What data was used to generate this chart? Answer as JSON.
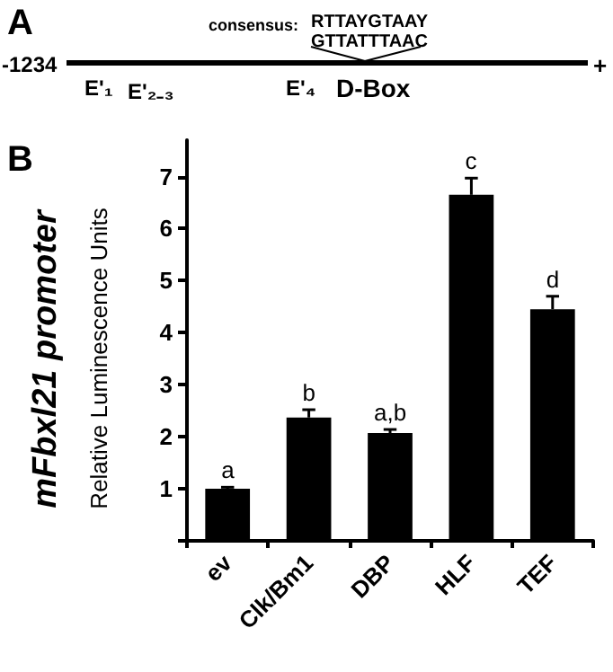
{
  "chart_data": {
    "type": "bar",
    "title": "mFbxl21 promoter",
    "ylabel": "Relative Luminescence Units",
    "categories": [
      "ev",
      "Clk/Bm1",
      "DBP",
      "HLF",
      "TEF"
    ],
    "values": [
      1.0,
      2.37,
      2.07,
      6.65,
      4.45
    ],
    "errors": [
      [
        1.0,
        1.03
      ],
      [
        2.37,
        2.52
      ],
      [
        2.07,
        2.14
      ],
      [
        6.65,
        6.97
      ],
      [
        4.45,
        4.7
      ]
    ],
    "color": "#000000",
    "ylim": [
      0,
      7.7
    ],
    "yticks": [
      {
        "value": 0,
        "label": null
      },
      1,
      2,
      3,
      4,
      5,
      6,
      7
    ],
    "grid": false,
    "annotations": [
      {
        "text": "a",
        "x": "ev",
        "y": 1.03
      },
      {
        "text": "b",
        "x": "Clk/Bm1",
        "y": 2.52
      },
      {
        "text": "a,b",
        "x": "DBP",
        "y": 2.14
      },
      {
        "text": "c",
        "x": "HLF",
        "y": 6.97
      },
      {
        "text": "d",
        "x": "TEF",
        "y": 4.7
      },
      "A",
      "B",
      "consensus:",
      "RTTAYGTAAY",
      "GTTATTTAAC",
      "-1234",
      "+",
      "E'₁",
      "E'₂₋₃",
      "E'₄",
      "D-Box"
    ]
  }
}
